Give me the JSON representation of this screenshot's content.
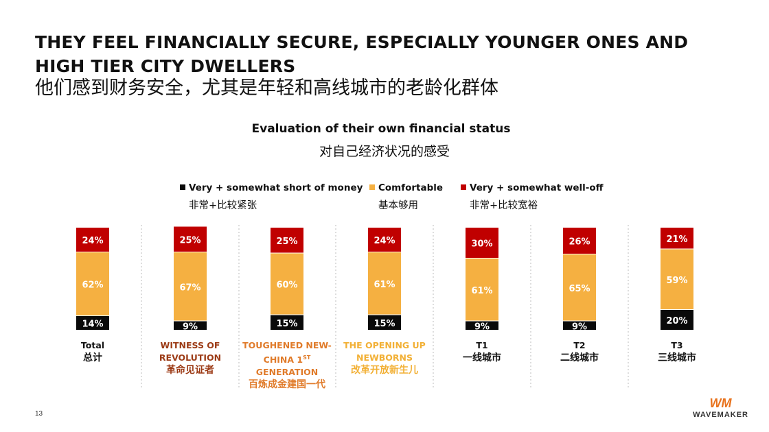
{
  "header": {
    "title_en": "THEY FEEL FINANCIALLY SECURE, ESPECIALLY YOUNGER ONES AND HIGH TIER CITY DWELLERS",
    "title_zh": "他们感到财务安全，尤其是年轻和高线城市的老龄化群体"
  },
  "chart_data": {
    "type": "bar",
    "stacked": true,
    "title": "Evaluation of their own financial status",
    "subtitle": "对自己经济状况的感受",
    "categories": [
      {
        "en": "Total",
        "zh": "总计",
        "color": "#111111"
      },
      {
        "en": "WITNESS OF REVOLUTION",
        "zh": "革命见证者",
        "color": "#9c3b16"
      },
      {
        "en": "TOUGHENED NEW-CHINA 1ST GENERATION",
        "zh": "百炼成金建国一代",
        "color": "#e07b2a"
      },
      {
        "en": "THE OPENING UP NEWBORNS",
        "zh": "改革开放新生儿",
        "color": "#f2b035"
      },
      {
        "en": "T1",
        "zh": "一线城市",
        "color": "#111111"
      },
      {
        "en": "T2",
        "zh": "二线城市",
        "color": "#111111"
      },
      {
        "en": "T3",
        "zh": "三线城市",
        "color": "#111111"
      }
    ],
    "series": [
      {
        "name": "Very + somewhat short of money",
        "name_zh": "非常+比较紧张",
        "color": "#0a0a0a",
        "text_color": "#ffffff",
        "values": [
          14,
          9,
          15,
          15,
          9,
          9,
          20
        ]
      },
      {
        "name": "Comfortable",
        "name_zh": "基本够用",
        "color": "#f5b041",
        "text_color": "#ffffff",
        "values": [
          62,
          67,
          60,
          61,
          61,
          65,
          59
        ]
      },
      {
        "name": "Very + somewhat well-off",
        "name_zh": "非常+比较宽裕",
        "color": "#c00000",
        "text_color": "#ffffff",
        "values": [
          24,
          25,
          25,
          24,
          30,
          26,
          21
        ]
      }
    ],
    "value_suffix": "%",
    "legend_position": "top"
  },
  "footer": {
    "page_number": "13",
    "logo_mark": "WM",
    "logo_text": "WAVEMAKER"
  }
}
